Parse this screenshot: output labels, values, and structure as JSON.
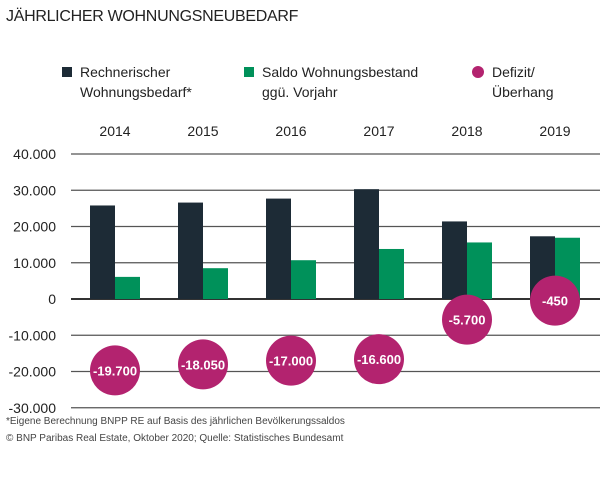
{
  "title": "JÄHRLICHER WOHNUNGSNEUBEDARF",
  "legend": [
    {
      "label1": "Rechnerischer",
      "label2": "Wohnungsbedarf*",
      "color": "#1d2b36",
      "shape": "square"
    },
    {
      "label1": "Saldo Wohnungsbestand",
      "label2": "ggü. Vorjahr",
      "color": "#00915a",
      "shape": "square"
    },
    {
      "label1": "Defizit/",
      "label2": "Überhang",
      "color": "#b3236f",
      "shape": "circle"
    }
  ],
  "chart_data": {
    "type": "bar",
    "categories": [
      "2014",
      "2015",
      "2016",
      "2017",
      "2018",
      "2019"
    ],
    "series": [
      {
        "name": "Rechnerischer Wohnungsbedarf*",
        "values": [
          25800,
          26600,
          27700,
          30300,
          21400,
          17300
        ],
        "color": "#1d2b36"
      },
      {
        "name": "Saldo Wohnungsbestand ggü. Vorjahr",
        "values": [
          6100,
          8500,
          10700,
          13800,
          15600,
          16900
        ],
        "color": "#00915a"
      },
      {
        "name": "Defizit/Überhang",
        "type": "bubble",
        "values": [
          -19700,
          -18050,
          -17000,
          -16600,
          -5700,
          -450
        ],
        "labels": [
          "-19.700",
          "-18.050",
          "-17.000",
          "-16.600",
          "-5.700",
          "-450"
        ],
        "color": "#b3236f"
      }
    ],
    "yticks": [
      "40.000",
      "30.000",
      "20.000",
      "10.000",
      "0",
      "-10.000",
      "-20.000",
      "-30.000"
    ],
    "ylim": [
      -30000,
      40000
    ],
    "grid": true,
    "legend": "top"
  },
  "footnotes": [
    "*Eigene Berechnung BNPP RE auf Basis des jährlichen Bevölkerungssaldos",
    "© BNP Paribas Real Estate, Oktober 2020; Quelle: Statistisches Bundesamt"
  ]
}
